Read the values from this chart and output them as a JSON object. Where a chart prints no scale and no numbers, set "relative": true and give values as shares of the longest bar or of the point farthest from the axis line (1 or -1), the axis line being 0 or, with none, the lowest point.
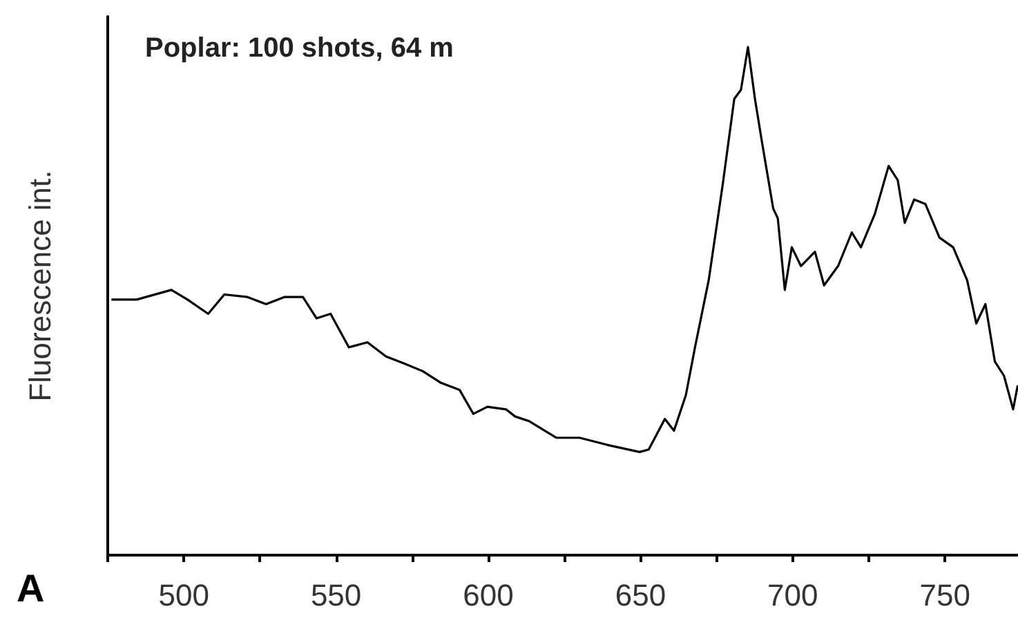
{
  "chart_data": {
    "type": "line",
    "title": "Poplar: 100 shots, 64 m",
    "ylabel": "Fluorescence int.",
    "annotations": [
      "A"
    ],
    "relative": true,
    "marker": "none",
    "line_style": "solid",
    "grid": false,
    "xlim": [
      475,
      774
    ],
    "xticks": [
      {
        "value": 475,
        "label": null
      },
      500,
      {
        "value": 525,
        "label": null
      },
      550,
      {
        "value": 575,
        "label": null
      },
      600,
      {
        "value": 625,
        "label": null
      },
      650,
      {
        "value": 675,
        "label": null
      },
      700,
      {
        "value": 725,
        "label": null
      },
      750
    ],
    "x": [
      476.2,
      484.5,
      495.9,
      501.2,
      508.0,
      513.3,
      520.9,
      527.0,
      533.0,
      539.1,
      543.6,
      548.2,
      554.2,
      560.3,
      566.4,
      572.4,
      578.5,
      584.5,
      590.6,
      595.1,
      599.7,
      605.8,
      608.8,
      613.3,
      622.4,
      630.0,
      639.1,
      649.7,
      652.7,
      658.0,
      661.0,
      664.9,
      667.9,
      672.4,
      677.0,
      680.8,
      683.0,
      685.3,
      687.6,
      689.9,
      693.6,
      695.1,
      697.4,
      699.7,
      702.7,
      707.3,
      710.3,
      714.9,
      719.4,
      722.4,
      727.0,
      731.5,
      734.5,
      736.8,
      739.9,
      743.6,
      748.2,
      752.7,
      757.3,
      760.3,
      763.3,
      766.4,
      769.4,
      772.4,
      773.9
    ],
    "series": [
      {
        "color": "#000000",
        "values": [
          0.503,
          0.503,
          0.522,
          0.503,
          0.475,
          0.513,
          0.508,
          0.494,
          0.508,
          0.508,
          0.466,
          0.475,
          0.409,
          0.419,
          0.391,
          0.377,
          0.362,
          0.339,
          0.325,
          0.278,
          0.292,
          0.287,
          0.273,
          0.264,
          0.231,
          0.231,
          0.217,
          0.203,
          0.208,
          0.268,
          0.245,
          0.315,
          0.409,
          0.541,
          0.729,
          0.898,
          0.916,
          1,
          0.898,
          0.813,
          0.682,
          0.663,
          0.522,
          0.606,
          0.569,
          0.597,
          0.531,
          0.569,
          0.635,
          0.606,
          0.672,
          0.766,
          0.738,
          0.654,
          0.7,
          0.691,
          0.625,
          0.606,
          0.541,
          0.456,
          0.494,
          0.381,
          0.353,
          0.287,
          0.334
        ]
      }
    ]
  }
}
